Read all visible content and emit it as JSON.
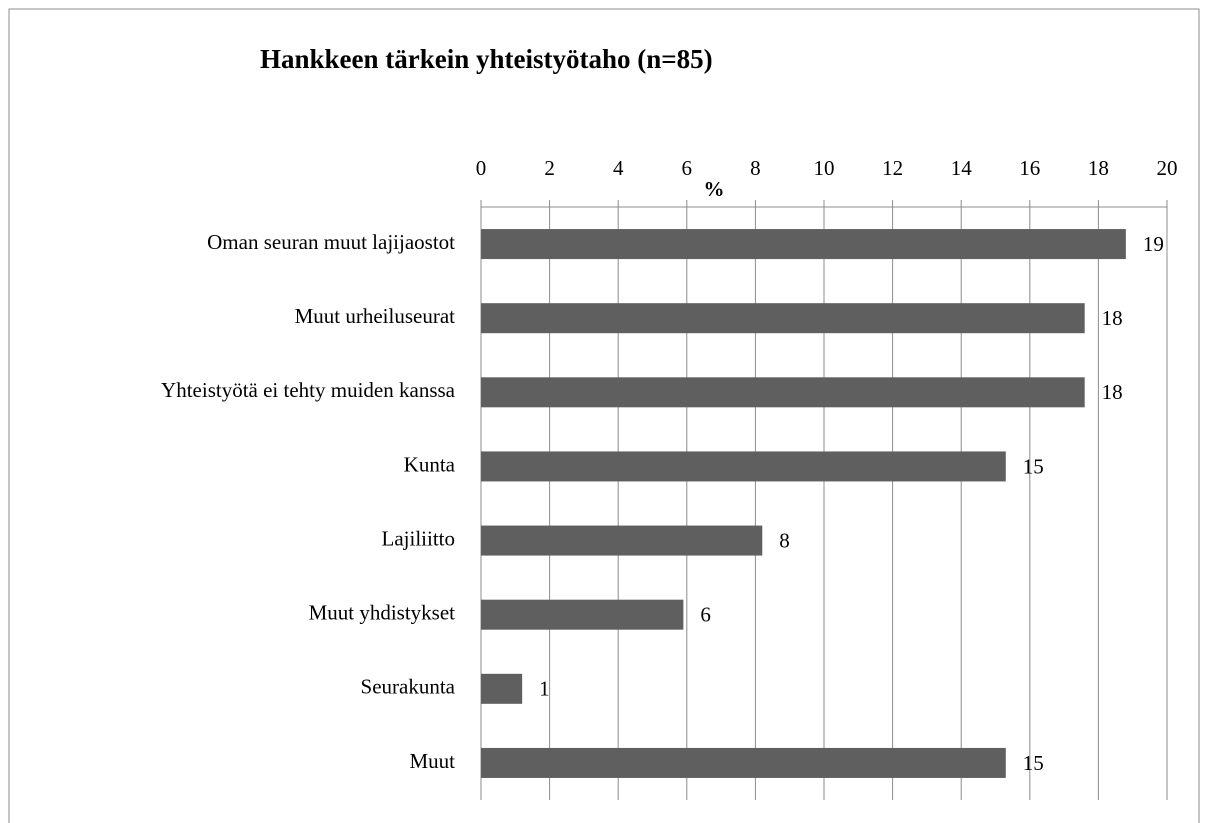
{
  "chart_data": {
    "type": "bar",
    "orientation": "horizontal",
    "title": "Hankkeen tärkein yhteistyötaho (n=85)",
    "xlabel": "%",
    "categories": [
      "Oman seuran muut lajijaostot",
      "Muut urheiluseurat",
      "Yhteistyötä ei tehty muiden kanssa",
      "Kunta",
      "Lajiliitto",
      "Muut yhdistykset",
      "Seurakunta",
      "Muut"
    ],
    "values": [
      18.8,
      17.6,
      17.6,
      15.3,
      8.2,
      5.9,
      1.2,
      15.3
    ],
    "value_labels": [
      "19",
      "18",
      "18",
      "15",
      "8",
      "6",
      "1",
      "15"
    ],
    "color": "#5f5f5f",
    "xlim": [
      0,
      20
    ],
    "xticks": [
      0,
      2,
      4,
      6,
      8,
      10,
      12,
      14,
      16,
      18,
      20
    ],
    "grid": true
  }
}
